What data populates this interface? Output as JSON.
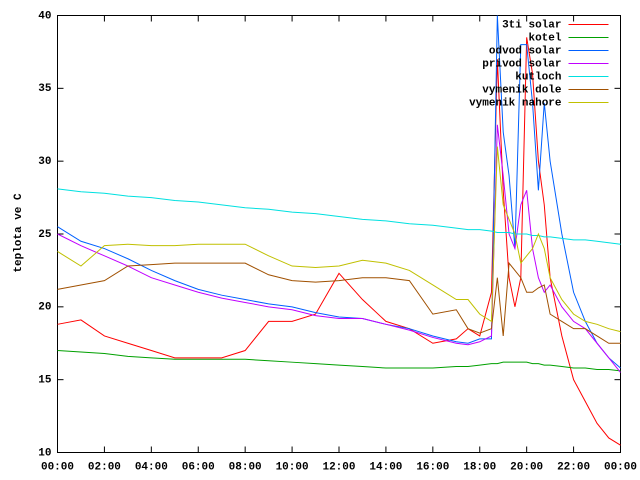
{
  "chart_data": {
    "type": "line",
    "y_label": "teplota ve C",
    "x": [
      0,
      1,
      2,
      3,
      4,
      5,
      6,
      7,
      8,
      9,
      10,
      11,
      12,
      13,
      14,
      15,
      16,
      17,
      17.5,
      18,
      18.5,
      18.75,
      19,
      19.25,
      19.5,
      19.75,
      20,
      20.25,
      20.5,
      20.75,
      21,
      21.5,
      22,
      22.5,
      23,
      23.5,
      24
    ],
    "xlim": [
      0,
      24
    ],
    "xticks": [
      {
        "value": 0,
        "label": "00:00"
      },
      {
        "value": 2,
        "label": "02:00"
      },
      {
        "value": 4,
        "label": "04:00"
      },
      {
        "value": 6,
        "label": "06:00"
      },
      {
        "value": 8,
        "label": "08:00"
      },
      {
        "value": 10,
        "label": "10:00"
      },
      {
        "value": 12,
        "label": "12:00"
      },
      {
        "value": 14,
        "label": "14:00"
      },
      {
        "value": 16,
        "label": "16:00"
      },
      {
        "value": 18,
        "label": "18:00"
      },
      {
        "value": 20,
        "label": "20:00"
      },
      {
        "value": 22,
        "label": "22:00"
      },
      {
        "value": 24,
        "label": "00:00"
      }
    ],
    "ylim": [
      10,
      40
    ],
    "yticks": [
      10,
      15,
      20,
      25,
      30,
      35,
      40
    ],
    "grid": false,
    "legend": "top-right",
    "series": [
      {
        "name": "3ti solar",
        "color": "#ff0000",
        "values": [
          18.8,
          19.1,
          18.0,
          17.5,
          17.0,
          16.5,
          16.5,
          16.5,
          17.0,
          19.0,
          19.0,
          19.5,
          22.3,
          20.5,
          19.0,
          18.5,
          17.5,
          17.8,
          18.5,
          18.0,
          21,
          37,
          28,
          22,
          20,
          22,
          38.5,
          36,
          30,
          27,
          22,
          18,
          15,
          13.5,
          12,
          11,
          10.5
        ]
      },
      {
        "name": "kotel",
        "color": "#00a000",
        "values": [
          17.0,
          16.9,
          16.8,
          16.6,
          16.5,
          16.4,
          16.4,
          16.4,
          16.4,
          16.3,
          16.2,
          16.1,
          16.0,
          15.9,
          15.8,
          15.8,
          15.8,
          15.9,
          15.9,
          16.0,
          16.1,
          16.1,
          16.2,
          16.2,
          16.2,
          16.2,
          16.2,
          16.1,
          16.1,
          16.0,
          16.0,
          15.9,
          15.8,
          15.8,
          15.7,
          15.7,
          15.6
        ]
      },
      {
        "name": "odvod solar",
        "color": "#0060ff",
        "values": [
          25.5,
          24.5,
          24.0,
          23.3,
          22.5,
          21.8,
          21.2,
          20.8,
          20.5,
          20.2,
          20.0,
          19.6,
          19.3,
          19.2,
          18.8,
          18.5,
          18.0,
          17.6,
          17.5,
          17.8,
          17.8,
          40,
          32,
          29,
          24,
          38,
          38,
          34,
          28,
          34,
          30,
          25,
          21,
          19,
          17.5,
          16.5,
          15.8
        ]
      },
      {
        "name": "privod solar",
        "color": "#c000ff",
        "values": [
          25.0,
          24.2,
          23.5,
          22.8,
          22.0,
          21.5,
          21.0,
          20.6,
          20.3,
          20.0,
          19.8,
          19.4,
          19.2,
          19.2,
          18.8,
          18.4,
          17.9,
          17.5,
          17.4,
          17.6,
          18.0,
          32.5,
          29,
          25,
          24,
          27,
          28,
          24,
          22,
          21,
          21.5,
          20,
          19,
          18.5,
          17.5,
          16.5,
          15.5
        ]
      },
      {
        "name": "kutloch",
        "color": "#00e0e0",
        "values": [
          28.1,
          27.9,
          27.8,
          27.6,
          27.5,
          27.3,
          27.2,
          27.0,
          26.8,
          26.7,
          26.5,
          26.4,
          26.2,
          26.0,
          25.9,
          25.7,
          25.6,
          25.4,
          25.3,
          25.3,
          25.2,
          25.1,
          25.1,
          25.1,
          25.0,
          25.0,
          25.0,
          24.9,
          24.9,
          24.8,
          24.8,
          24.7,
          24.6,
          24.6,
          24.5,
          24.4,
          24.3
        ]
      },
      {
        "name": "vymenik dole",
        "color": "#a05000",
        "values": [
          21.2,
          21.5,
          21.8,
          22.8,
          22.9,
          23.0,
          23.0,
          23.0,
          23.0,
          22.2,
          21.8,
          21.7,
          21.8,
          22.0,
          22.0,
          21.8,
          19.5,
          19.8,
          18.5,
          18.2,
          18.5,
          22,
          18,
          23,
          22.5,
          22,
          21,
          21,
          21.3,
          21.5,
          19.5,
          19,
          18.5,
          18.5,
          18,
          17.5,
          17.5
        ]
      },
      {
        "name": "vymenik nahore",
        "color": "#c0c000",
        "values": [
          23.8,
          22.8,
          24.2,
          24.3,
          24.2,
          24.2,
          24.3,
          24.3,
          24.3,
          23.5,
          22.8,
          22.7,
          22.8,
          23.2,
          23.0,
          22.5,
          21.5,
          20.5,
          20.5,
          19.5,
          19,
          31,
          27,
          26,
          25,
          23,
          23.5,
          24,
          25,
          24,
          22,
          20.5,
          19.5,
          19,
          18.8,
          18.5,
          18.3
        ]
      }
    ]
  }
}
